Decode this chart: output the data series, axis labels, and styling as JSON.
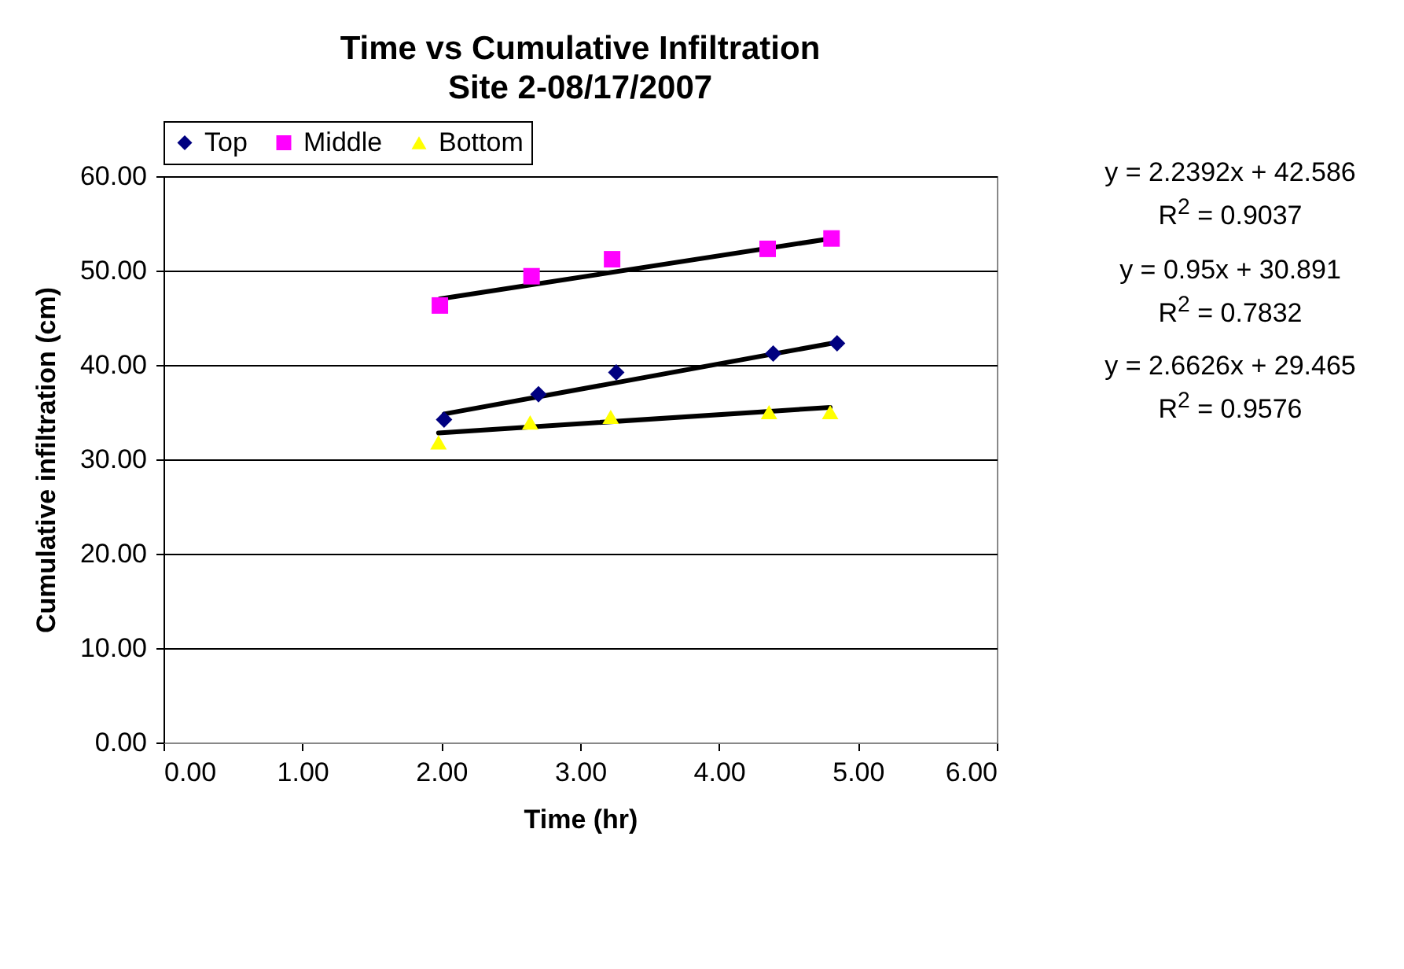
{
  "chart_data": {
    "type": "scatter",
    "title": "Time vs Cumulative Infiltration",
    "subtitle": "Site 2-08/17/2007",
    "xlabel": "Time (hr)",
    "ylabel": "Cumulative infiltration (cm)",
    "series": [
      {
        "name": "Top",
        "color": "#000080",
        "marker": "diamond",
        "x": [
          2.02,
          2.7,
          3.26,
          4.39,
          4.85
        ],
        "values": [
          34.2,
          36.9,
          39.2,
          41.2,
          42.3
        ]
      },
      {
        "name": "Middle",
        "color": "#ff00ff",
        "marker": "square",
        "x": [
          1.99,
          2.65,
          3.23,
          4.35,
          4.81
        ],
        "values": [
          46.3,
          49.4,
          51.2,
          52.3,
          53.4
        ]
      },
      {
        "name": "Bottom",
        "color": "#ffff00",
        "marker": "triangle",
        "x": [
          1.98,
          2.64,
          3.22,
          4.36,
          4.8
        ],
        "values": [
          31.8,
          33.9,
          34.5,
          35.0,
          35.0
        ]
      },
      {
        "type": "line",
        "color": "#000000",
        "marker": "none",
        "x": [
          2.02,
          4.85
        ],
        "values": [
          34.8,
          42.4
        ]
      },
      {
        "type": "line",
        "color": "#000000",
        "marker": "none",
        "x": [
          1.99,
          4.81
        ],
        "values": [
          47.0,
          53.4
        ]
      },
      {
        "type": "line",
        "color": "#000000",
        "marker": "none",
        "x": [
          1.98,
          4.8
        ],
        "values": [
          32.8,
          35.5
        ]
      }
    ],
    "xlim": [
      0,
      6
    ],
    "xticks": [
      {
        "value": 0,
        "label": "0.00"
      },
      {
        "value": 1,
        "label": "1.00"
      },
      {
        "value": 2,
        "label": "2.00"
      },
      {
        "value": 3,
        "label": "3.00"
      },
      {
        "value": 4,
        "label": "4.00"
      },
      {
        "value": 5,
        "label": "5.00"
      },
      {
        "value": 6,
        "label": "6.00"
      }
    ],
    "ylim": [
      0,
      60
    ],
    "yticks": [
      {
        "value": 0,
        "label": "0.00"
      },
      {
        "value": 10,
        "label": "10.00"
      },
      {
        "value": 20,
        "label": "20.00"
      },
      {
        "value": 30,
        "label": "30.00"
      },
      {
        "value": 40,
        "label": "40.00"
      },
      {
        "value": 50,
        "label": "50.00"
      },
      {
        "value": 60,
        "label": "60.00"
      }
    ],
    "grid": "y",
    "legend": "top",
    "annotations": [
      "y = 2.2392x + 42.586",
      "R$^{2}$ = 0.9037",
      "y = 0.95x + 30.891",
      "R$^{2}$ = 0.7832",
      "y = 2.6626x + 29.465",
      "R$^{2}$ = 0.9576"
    ]
  }
}
